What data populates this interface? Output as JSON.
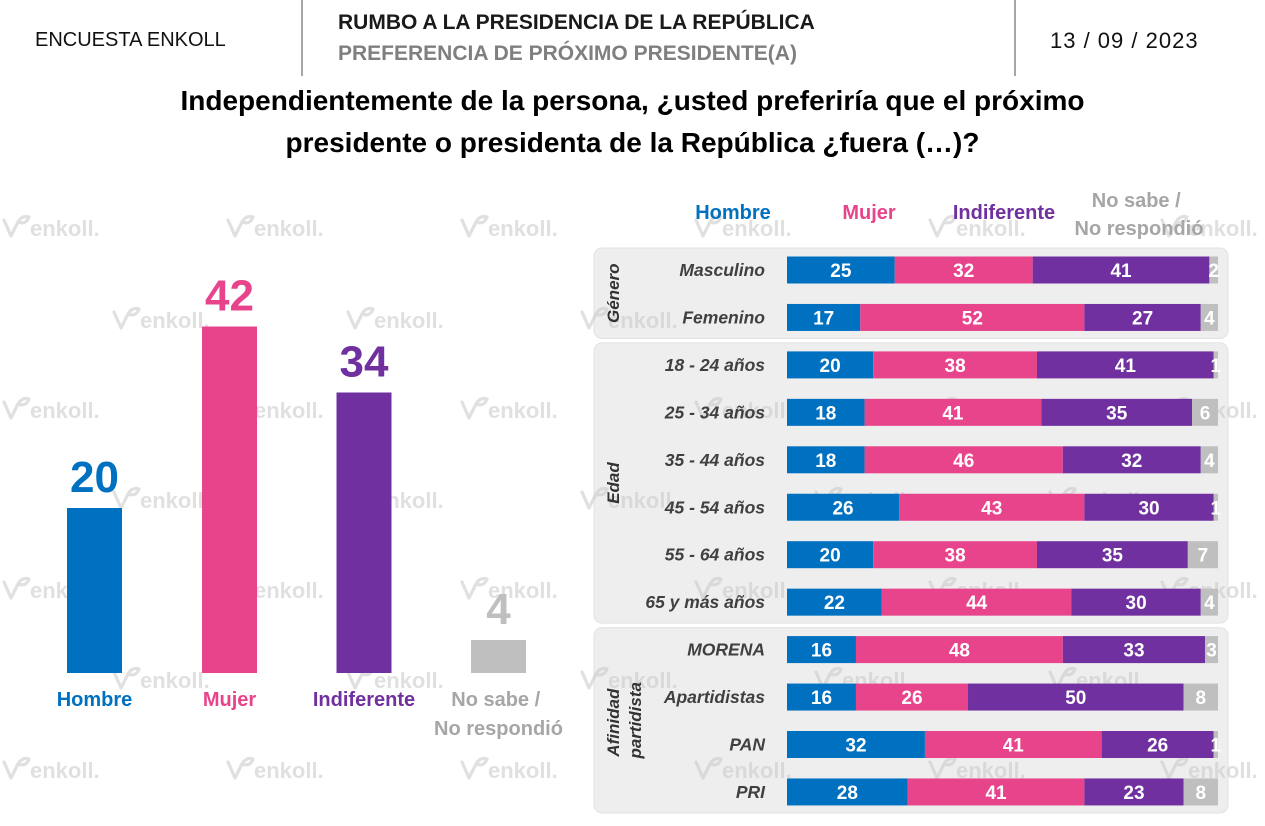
{
  "header": {
    "survey": "ENCUESTA ENKOLL",
    "title": "RUMBO A LA PRESIDENCIA DE LA REPÚBLICA",
    "subtitle": "PREFERENCIA DE PRÓXIMO PRESIDENTE(A)",
    "date": "13 / 09 / 2023"
  },
  "question": {
    "line1": "Independientemente de la persona, ¿usted preferiría que el próximo",
    "line2": "presidente o presidenta de la República ¿fuera (…)?"
  },
  "watermark": "enkoll.",
  "colors": {
    "hombre": "#0070C0",
    "mujer": "#E8448B",
    "indiferente": "#7030A0",
    "no_sabe": "#BFBFBF",
    "no_sabe_text": "#A6A6A6",
    "panel": "#EEEEEE"
  },
  "chart_data": [
    {
      "type": "bar",
      "categories": [
        "Hombre",
        "Mujer",
        "Indiferente",
        "No sabe / No respondió"
      ],
      "values": [
        20,
        42,
        34,
        4
      ]
    },
    {
      "type": "bar",
      "orientation": "horizontal",
      "stacked": true,
      "legend": "top",
      "series": [
        {
          "name": "Hombre",
          "values": [
            25,
            17,
            20,
            18,
            18,
            26,
            20,
            22,
            16,
            16,
            32,
            28
          ]
        },
        {
          "name": "Mujer",
          "values": [
            32,
            52,
            38,
            41,
            46,
            43,
            38,
            44,
            48,
            26,
            41,
            41
          ]
        },
        {
          "name": "Indiferente",
          "values": [
            41,
            27,
            41,
            35,
            32,
            30,
            35,
            30,
            33,
            50,
            26,
            23
          ]
        },
        {
          "name": "No sabe / No respondió",
          "values": [
            2,
            4,
            1,
            6,
            4,
            1,
            7,
            4,
            3,
            8,
            1,
            8
          ]
        }
      ],
      "groups": [
        {
          "name": "Género",
          "categories": [
            "Masculino",
            "Femenino"
          ]
        },
        {
          "name": "Edad",
          "categories": [
            "18 - 24 años",
            "25 - 34 años",
            "35 - 44 años",
            "45 - 54 años",
            "55 - 64 años",
            "65 y más años"
          ]
        },
        {
          "name": "Afinidad partidista",
          "categories": [
            "MORENA",
            "Apartidistas",
            "PAN",
            "PRI"
          ]
        }
      ]
    }
  ]
}
